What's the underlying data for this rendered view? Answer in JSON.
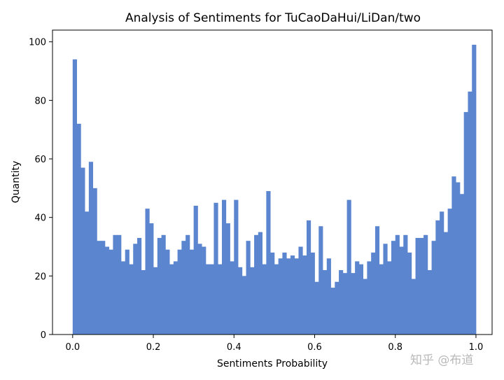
{
  "chart_data": {
    "type": "histogram",
    "title": "Analysis of Sentiments for TuCaoDaHui/LiDan/two",
    "xlabel": "Sentiments Probability",
    "ylabel": "Quantity",
    "xlim": [
      -0.05,
      1.04
    ],
    "ylim": [
      0,
      104
    ],
    "bin_start": 0.0,
    "bin_width": 0.01,
    "xticks": [
      "0.0",
      "0.2",
      "0.4",
      "0.6",
      "0.8",
      "1.0"
    ],
    "yticks": [
      "0",
      "20",
      "40",
      "60",
      "80",
      "100"
    ],
    "bar_color": "#5b86cf",
    "grid": false,
    "values": [
      94,
      72,
      57,
      42,
      59,
      50,
      32,
      32,
      30,
      29,
      34,
      34,
      25,
      29,
      24,
      31,
      33,
      22,
      43,
      38,
      23,
      33,
      34,
      29,
      24,
      25,
      29,
      32,
      34,
      29,
      44,
      31,
      30,
      24,
      24,
      45,
      24,
      46,
      38,
      25,
      46,
      23,
      20,
      32,
      23,
      34,
      35,
      24,
      49,
      28,
      24,
      26,
      28,
      26,
      27,
      26,
      30,
      27,
      39,
      28,
      18,
      37,
      22,
      26,
      16,
      18,
      22,
      21,
      46,
      21,
      25,
      24,
      19,
      25,
      28,
      37,
      24,
      31,
      25,
      32,
      34,
      30,
      34,
      28,
      19,
      33,
      33,
      34,
      22,
      32,
      39,
      42,
      35,
      43,
      54,
      52,
      48,
      76,
      83,
      99
    ]
  },
  "watermark": "知乎 @布道"
}
